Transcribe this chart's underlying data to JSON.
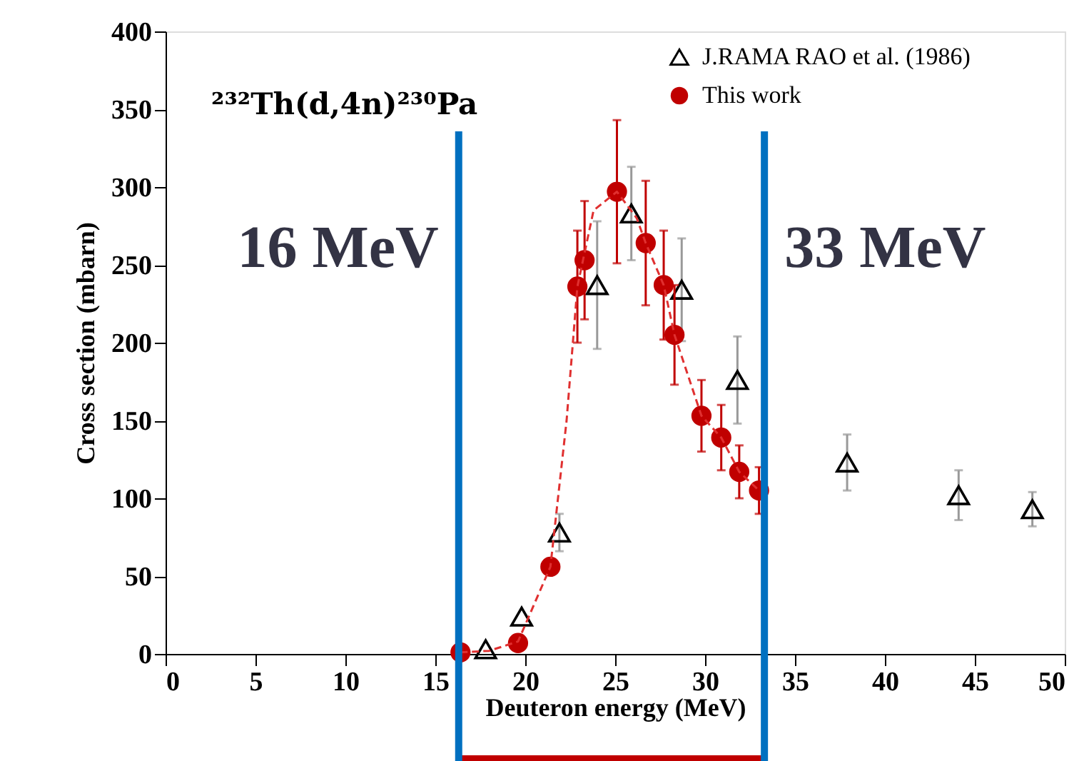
{
  "chart_data": {
    "type": "scatter",
    "xlabel": "Deuteron energy (MeV)",
    "ylabel": "Cross section (mbarn)",
    "xlim": [
      0,
      50
    ],
    "xticks": [
      0,
      5,
      10,
      15,
      20,
      25,
      30,
      35,
      40,
      45,
      50
    ],
    "ylim": [
      0,
      400
    ],
    "yticks": [
      0,
      50,
      100,
      150,
      200,
      250,
      300,
      350,
      400
    ],
    "grid": false,
    "legend": "top right",
    "annotations": [
      {
        "text": "²³²Th(d,4n)²³⁰Pa"
      }
    ],
    "series": [
      {
        "name": "J.RAMA RAO et al. (1986)",
        "color": "#000000",
        "marker": "triangle",
        "x": [
          17.8,
          19.8,
          21.9,
          24.0,
          25.9,
          28.7,
          31.8,
          37.9,
          44.1,
          48.2
        ],
        "values": [
          3,
          24,
          78,
          237,
          283,
          234,
          176,
          123,
          102,
          93
        ],
        "errors": [
          null,
          null,
          12,
          41,
          30,
          33,
          28,
          18,
          16,
          11
        ]
      },
      {
        "name": "This work",
        "color": "#c00000",
        "marker": "circle",
        "x": [
          16.4,
          19.6,
          21.4,
          22.9,
          23.3,
          25.1,
          26.7,
          27.7,
          28.3,
          29.8,
          30.9,
          31.9,
          33.0
        ],
        "values": [
          1,
          7,
          56,
          236,
          253,
          297,
          264,
          237,
          205,
          153,
          139,
          117,
          105
        ],
        "errors": [
          null,
          null,
          5,
          36,
          38,
          46,
          40,
          35,
          32,
          23,
          21,
          17,
          15
        ]
      },
      {
        "type": "line",
        "color": "#e03030",
        "line_style": "dashed",
        "marker": "none",
        "x": [
          16.4,
          18.0,
          19.6,
          21.4,
          22.3,
          22.9,
          23.8,
          25.1,
          26.2,
          26.7,
          27.7,
          28.3,
          29.8,
          30.9,
          31.9,
          33.0
        ],
        "values": [
          1,
          2,
          8,
          56,
          150,
          236,
          285,
          297,
          280,
          264,
          237,
          205,
          153,
          139,
          117,
          105
        ]
      }
    ],
    "ref_lines": [
      {
        "axis": "x",
        "value": 16.3,
        "label": "16 MeV",
        "color": "#0070c0"
      },
      {
        "axis": "x",
        "value": 33.3,
        "label": "33 MeV",
        "color": "#0070c0"
      }
    ]
  }
}
